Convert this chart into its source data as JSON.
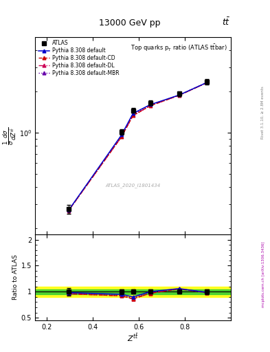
{
  "title_top": "13000 GeV pp",
  "title_right": "tt",
  "plot_title": "Top quarks p_{T} ratio (ATLAS tbar)",
  "watermark": "ATLAS_2020_I1801434",
  "rivet_label": "Rivet 3.1.10, ≥ 2.8M events",
  "arxiv_label": "mcplots.cern.ch [arXiv:1306.3436]",
  "x_data": [
    0.295,
    0.525,
    0.575,
    0.65,
    0.775,
    0.895
  ],
  "atlas_y": [
    0.275,
    1.01,
    1.45,
    1.65,
    1.92,
    2.35
  ],
  "atlas_yerr": [
    0.02,
    0.05,
    0.06,
    0.07,
    0.08,
    0.1
  ],
  "pythia_default_y": [
    0.27,
    0.96,
    1.38,
    1.6,
    1.88,
    2.32
  ],
  "pythia_cd_y": [
    0.268,
    0.93,
    1.33,
    1.57,
    1.87,
    2.31
  ],
  "pythia_dl_y": [
    0.268,
    0.93,
    1.33,
    1.57,
    1.87,
    2.31
  ],
  "pythia_mbr_y": [
    0.269,
    0.94,
    1.35,
    1.59,
    1.88,
    2.32
  ],
  "ratio_default": [
    0.982,
    0.95,
    0.9,
    1.0,
    1.06,
    0.987
  ],
  "ratio_cd": [
    0.96,
    0.92,
    0.862,
    0.97,
    1.05,
    0.983
  ],
  "ratio_dl": [
    0.96,
    0.92,
    0.862,
    0.97,
    1.055,
    0.983
  ],
  "ratio_mbr": [
    0.97,
    0.931,
    0.88,
    0.99,
    1.055,
    0.987
  ],
  "color_atlas": "#000000",
  "color_default": "#0000cc",
  "color_cd": "#cc0000",
  "color_dl": "#cc0055",
  "color_mbr": "#6600aa",
  "xlim": [
    0.15,
    1.0
  ],
  "ylim_main_log": [
    0.18,
    5.0
  ],
  "ylim_ratio": [
    0.45,
    2.1
  ],
  "legend_labels": [
    "ATLAS",
    "Pythia 8.308 default",
    "Pythia 8.308 default-CD",
    "Pythia 8.308 default-DL",
    "Pythia 8.308 default-MBR"
  ]
}
